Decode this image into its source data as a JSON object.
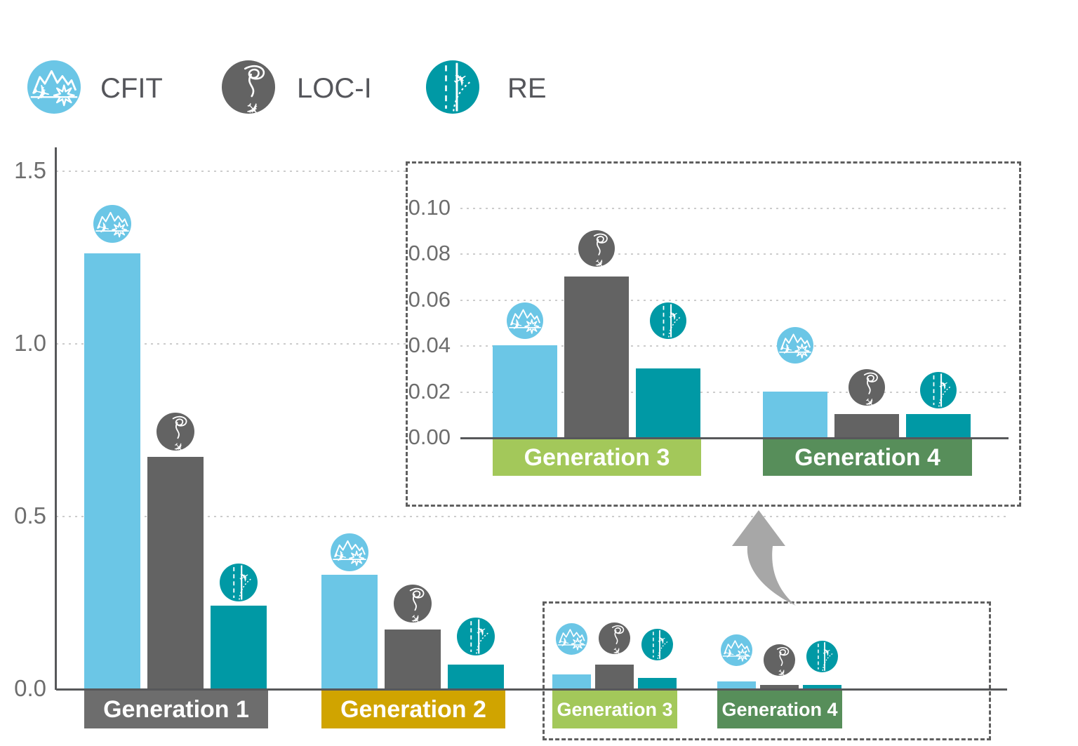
{
  "legend": {
    "items": [
      {
        "label": "CFIT",
        "icon": "cfit-icon",
        "color": "#6bc6e6"
      },
      {
        "label": "LOC-I",
        "icon": "loc-i-icon",
        "color": "#636363"
      },
      {
        "label": "RE",
        "icon": "re-icon",
        "color": "#0099a5"
      }
    ]
  },
  "chart_data": {
    "type": "bar",
    "title": "",
    "categories": [
      "Generation 1",
      "Generation 2",
      "Generation 3",
      "Generation 4"
    ],
    "series": [
      {
        "name": "CFIT",
        "color": "#6bc6e6",
        "values": [
          1.26,
          0.33,
          0.04,
          0.02
        ]
      },
      {
        "name": "LOC-I",
        "color": "#636363",
        "values": [
          0.67,
          0.17,
          0.07,
          0.01
        ]
      },
      {
        "name": "RE",
        "color": "#0099a5",
        "values": [
          0.24,
          0.07,
          0.03,
          0.01
        ]
      }
    ],
    "category_label_colors": [
      "#6d6d6d",
      "#d0a400",
      "#a3c85a",
      "#578e5a"
    ],
    "main_axis": {
      "tick_values": [
        0,
        0.5,
        1.0,
        1.5
      ],
      "tick_labels": [
        "0.0",
        "0.5",
        "1.0",
        "1.5"
      ],
      "ylim": [
        0,
        1.57
      ],
      "grid": "dotted horizontal"
    },
    "inset": {
      "type": "bar",
      "categories": [
        "Generation 3",
        "Generation 4"
      ],
      "series": [
        {
          "name": "CFIT",
          "color": "#6bc6e6",
          "values": [
            0.04,
            0.02
          ]
        },
        {
          "name": "LOC-I",
          "color": "#636363",
          "values": [
            0.07,
            0.01
          ]
        },
        {
          "name": "RE",
          "color": "#0099a5",
          "values": [
            0.03,
            0.01
          ]
        }
      ],
      "category_label_colors": [
        "#a3c85a",
        "#578e5a"
      ],
      "axis": {
        "tick_values": [
          0,
          0.02,
          0.04,
          0.06,
          0.08,
          0.1
        ],
        "tick_labels": [
          "0.00",
          "0.02",
          "0.04",
          "0.06",
          "0.08",
          "0.10"
        ],
        "ylim": [
          0,
          0.107
        ],
        "grid": "dotted horizontal"
      },
      "note": "magnified view of Generation 3 and Generation 4 connected by arrow from dashed selection box"
    }
  }
}
